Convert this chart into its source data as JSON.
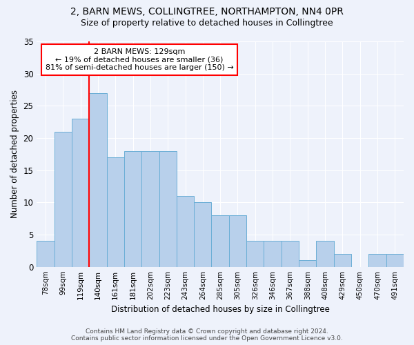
{
  "title1": "2, BARN MEWS, COLLINGTREE, NORTHAMPTON, NN4 0PR",
  "title2": "Size of property relative to detached houses in Collingtree",
  "xlabel": "Distribution of detached houses by size in Collingtree",
  "ylabel": "Number of detached properties",
  "bar_labels": [
    "78sqm",
    "99sqm",
    "119sqm",
    "140sqm",
    "161sqm",
    "181sqm",
    "202sqm",
    "223sqm",
    "243sqm",
    "264sqm",
    "285sqm",
    "305sqm",
    "326sqm",
    "346sqm",
    "367sqm",
    "388sqm",
    "408sqm",
    "429sqm",
    "450sqm",
    "470sqm",
    "491sqm"
  ],
  "bar_values": [
    4,
    21,
    23,
    27,
    17,
    18,
    18,
    18,
    11,
    10,
    8,
    8,
    4,
    4,
    4,
    1,
    4,
    2,
    0,
    2,
    2
  ],
  "bar_color": "#b8d0eb",
  "bar_edge_color": "#6aaed6",
  "annotation_text_line1": "2 BARN MEWS: 129sqm",
  "annotation_text_line2": "← 19% of detached houses are smaller (36)",
  "annotation_text_line3": "81% of semi-detached houses are larger (150) →",
  "annotation_box_color": "white",
  "annotation_box_edge": "red",
  "vline_color": "red",
  "vline_x": 2.5,
  "ylim": [
    0,
    35
  ],
  "yticks": [
    0,
    5,
    10,
    15,
    20,
    25,
    30,
    35
  ],
  "footer1": "Contains HM Land Registry data © Crown copyright and database right 2024.",
  "footer2": "Contains public sector information licensed under the Open Government Licence v3.0.",
  "bg_color": "#eef2fb",
  "grid_color": "#ffffff",
  "title1_fontsize": 10,
  "title2_fontsize": 9,
  "title1_weight": "normal"
}
